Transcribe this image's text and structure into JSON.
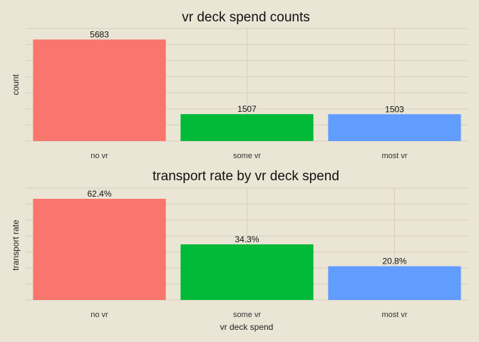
{
  "chart_data": [
    {
      "type": "bar",
      "title": "vr deck spend counts",
      "xlabel": "",
      "ylabel": "count",
      "categories": [
        "no vr",
        "some vr",
        "most vr"
      ],
      "values": [
        5683,
        1507,
        1503
      ],
      "labels": [
        "5683",
        "1507",
        "1503"
      ],
      "colors": [
        "#f8766d",
        "#00ba38",
        "#619cff"
      ],
      "ylim": [
        0,
        6300
      ],
      "grid": true,
      "legend": "none"
    },
    {
      "type": "bar",
      "title": "transport rate by vr deck spend",
      "xlabel": "vr deck spend",
      "ylabel": "transport rate",
      "categories": [
        "no vr",
        "some vr",
        "most vr"
      ],
      "values": [
        0.624,
        0.343,
        0.208
      ],
      "labels": [
        "62.4%",
        "34.3%",
        "20.8%"
      ],
      "colors": [
        "#f8766d",
        "#00ba38",
        "#619cff"
      ],
      "ylim": [
        0,
        0.69
      ],
      "grid": true,
      "legend": "none"
    }
  ]
}
